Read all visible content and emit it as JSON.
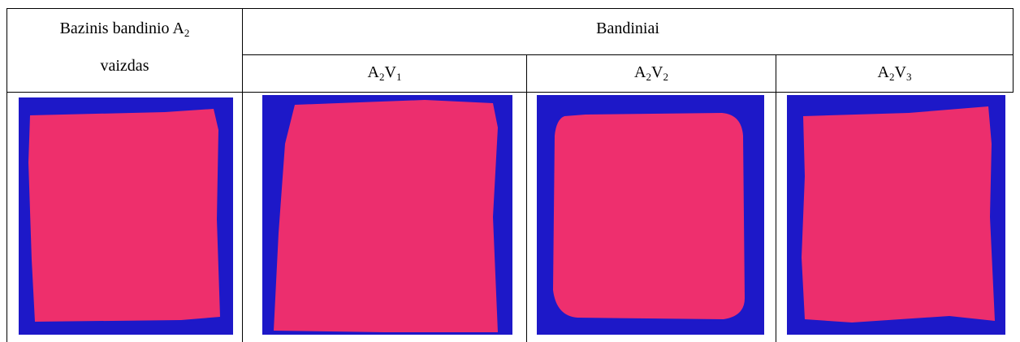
{
  "table": {
    "base_header": {
      "text": "Bazinis bandinio A",
      "sub": "2",
      "line2": "vaizdas"
    },
    "group_header": "Bandiniai",
    "samples": [
      {
        "a": "A",
        "a_sub": "2",
        "v": "V",
        "v_sub": "1"
      },
      {
        "a": "A",
        "a_sub": "2",
        "v": "V",
        "v_sub": "2"
      },
      {
        "a": "A",
        "a_sub": "2",
        "v": "V",
        "v_sub": "3"
      }
    ]
  }
}
